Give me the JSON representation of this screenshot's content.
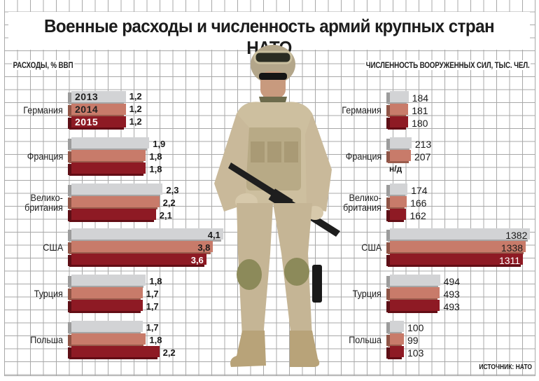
{
  "title": "Военные расходы и численность армий крупных стран НАТО",
  "left_axis_label": "РАСХОДЫ, % ВВП",
  "right_axis_label": "ЧИСЛЕННОСТЬ ВООРУЖЕННЫХ СИЛ, ТЫС. ЧЕЛ.",
  "source": "ИСТОЧНИК: НАТО",
  "years": [
    "2013",
    "2014",
    "2015"
  ],
  "colors": {
    "2013": "#d2d3d5",
    "2014": "#c87b6a",
    "2015": "#8e1a24"
  },
  "not_available": "н/д",
  "countries": [
    {
      "name": "Германия",
      "name_lines": [
        "Германия"
      ]
    },
    {
      "name": "Франция",
      "name_lines": [
        "Франция"
      ]
    },
    {
      "name": "Великобритания",
      "name_lines": [
        "Велико-",
        "британия"
      ]
    },
    {
      "name": "США",
      "name_lines": [
        "США"
      ]
    },
    {
      "name": "Турция",
      "name_lines": [
        "Турция"
      ]
    },
    {
      "name": "Польша",
      "name_lines": [
        "Польша"
      ]
    }
  ],
  "chart_data": [
    {
      "type": "bar",
      "orientation": "horizontal",
      "title": "Военные расходы и численность армий крупных стран НАТО",
      "xlabel": "РАСХОДЫ, % ВВП",
      "categories": [
        "Германия",
        "Франция",
        "Великобритания",
        "США",
        "Турция",
        "Польша"
      ],
      "series": [
        {
          "name": "2013",
          "values": [
            1.2,
            1.9,
            2.3,
            4.1,
            1.8,
            1.7
          ],
          "labels": [
            "1,2",
            "1,9",
            "2,3",
            "4,1",
            "1,8",
            "1,7"
          ]
        },
        {
          "name": "2014",
          "values": [
            1.2,
            1.8,
            2.2,
            3.8,
            1.7,
            1.8
          ],
          "labels": [
            "1,2",
            "1,8",
            "2,2",
            "3,8",
            "1,7",
            "1,8"
          ]
        },
        {
          "name": "2015",
          "values": [
            1.2,
            1.8,
            2.1,
            3.6,
            1.7,
            2.2
          ],
          "labels": [
            "1,2",
            "1,8",
            "2,1",
            "3,6",
            "1,7",
            "2,2"
          ]
        }
      ],
      "grid": true,
      "legend": "year labels inside Germany bars"
    },
    {
      "type": "bar",
      "orientation": "horizontal",
      "xlabel": "ЧИСЛЕННОСТЬ ВООРУЖЕННЫХ СИЛ, ТЫС. ЧЕЛ.",
      "categories": [
        "Германия",
        "Франция",
        "Великобритания",
        "США",
        "Турция",
        "Польша"
      ],
      "series": [
        {
          "name": "2013",
          "values": [
            184,
            213,
            174,
            1382,
            494,
            100
          ]
        },
        {
          "name": "2014",
          "values": [
            181,
            207,
            166,
            1338,
            493,
            99
          ]
        },
        {
          "name": "2015",
          "values": [
            180,
            null,
            162,
            1311,
            493,
            103
          ]
        }
      ],
      "annotations": [
        "Франция 2015: н/д"
      ],
      "grid": true,
      "source": "ИСТОЧНИК: НАТО"
    }
  ]
}
